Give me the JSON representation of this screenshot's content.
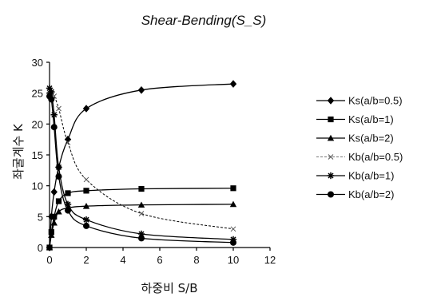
{
  "chart_data": {
    "type": "line",
    "title": "Shear-Bending(S_S)",
    "xlabel": "하중비 S/B",
    "ylabel": "좌굴계수 K",
    "xlim": [
      0,
      12
    ],
    "ylim": [
      0,
      30
    ],
    "xticks": [
      "0",
      "2",
      "4",
      "6",
      "8",
      "10",
      "12"
    ],
    "yticks": [
      "0",
      "5",
      "10",
      "15",
      "20",
      "25",
      "30"
    ],
    "grid": false,
    "legend_position": "right",
    "series": [
      {
        "name": "Ks(a/b=0.5)",
        "marker": "diamond",
        "dash": "solid",
        "x": [
          0,
          0.1,
          0.25,
          0.5,
          1,
          2,
          5,
          10
        ],
        "y": [
          0,
          5.0,
          9.0,
          13.0,
          17.5,
          22.5,
          25.5,
          26.5
        ]
      },
      {
        "name": "Ks(a/b=1)",
        "marker": "square",
        "dash": "solid",
        "x": [
          0,
          0.1,
          0.25,
          0.5,
          1,
          2,
          5,
          10
        ],
        "y": [
          0,
          2.5,
          5.0,
          7.5,
          8.8,
          9.2,
          9.5,
          9.6
        ]
      },
      {
        "name": "Ks(a/b=2)",
        "marker": "triangle",
        "dash": "solid",
        "x": [
          0,
          0.1,
          0.25,
          0.5,
          1,
          2,
          5,
          10
        ],
        "y": [
          0,
          2.0,
          4.0,
          5.8,
          6.4,
          6.7,
          6.9,
          7.0
        ]
      },
      {
        "name": "Kb(a/b=0.5)",
        "marker": "x",
        "dash": "dashed",
        "x": [
          0,
          0.1,
          0.25,
          0.5,
          1,
          2,
          5,
          10
        ],
        "y": [
          25.5,
          25.0,
          24.5,
          22.5,
          17.0,
          11.0,
          5.5,
          3.0
        ]
      },
      {
        "name": "Kb(a/b=1)",
        "marker": "star",
        "dash": "solid",
        "x": [
          0,
          0.1,
          0.25,
          0.5,
          1,
          2,
          5,
          10
        ],
        "y": [
          25.8,
          25.2,
          21.5,
          13.0,
          7.0,
          4.5,
          2.2,
          1.3
        ]
      },
      {
        "name": "Kb(a/b=2)",
        "marker": "circle",
        "dash": "solid",
        "x": [
          0,
          0.1,
          0.25,
          0.5,
          1,
          2,
          5,
          10
        ],
        "y": [
          24.5,
          24.0,
          19.5,
          11.5,
          6.0,
          3.5,
          1.5,
          0.8
        ]
      }
    ]
  }
}
